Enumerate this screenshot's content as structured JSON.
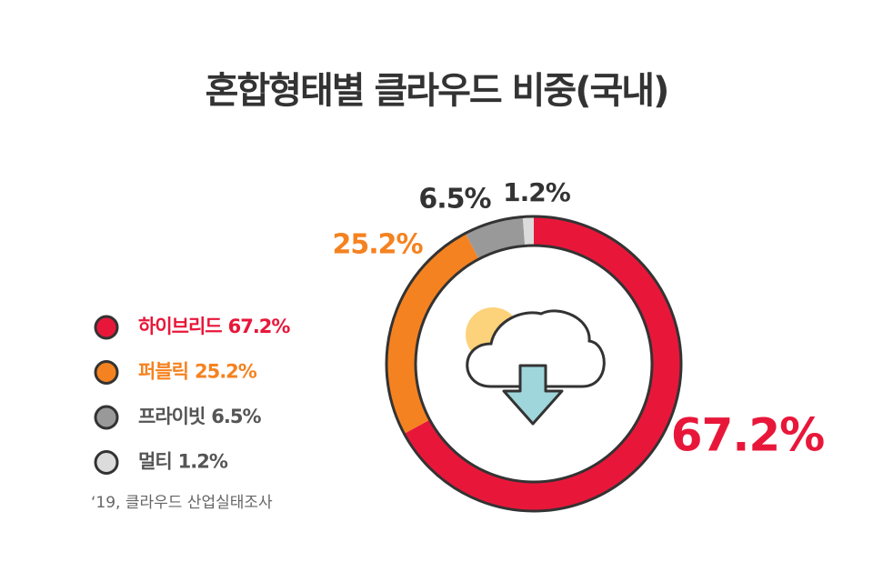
{
  "chart_data": {
    "type": "donut",
    "title": "혼합형태별 클라우드 비중(국내)",
    "series": [
      {
        "name": "하이브리드",
        "color": "#e8173a",
        "values": [
          67.2
        ],
        "value_labels": [
          "67.2%"
        ]
      },
      {
        "name": "퍼블릭",
        "color": "#f58220",
        "values": [
          25.2
        ],
        "value_labels": [
          "25.2%"
        ]
      },
      {
        "name": "프라이빗",
        "color": "#999999",
        "values": [
          6.5
        ],
        "value_labels": [
          "6.5%"
        ]
      },
      {
        "name": "멀티",
        "color": "#dcdcdc",
        "values": [
          1.2
        ],
        "value_labels": [
          "1.2%"
        ]
      }
    ],
    "source": "‘19, 클라우드 산업실태조사"
  }
}
